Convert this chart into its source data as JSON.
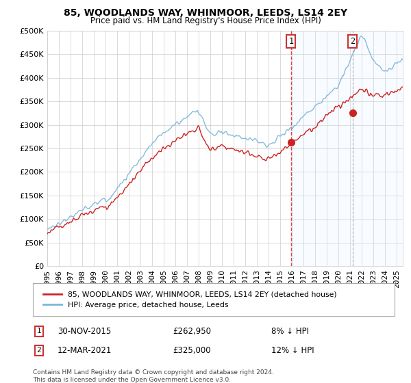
{
  "title": "85, WOODLANDS WAY, WHINMOOR, LEEDS, LS14 2EY",
  "subtitle": "Price paid vs. HM Land Registry's House Price Index (HPI)",
  "legend_line1": "85, WOODLANDS WAY, WHINMOOR, LEEDS, LS14 2EY (detached house)",
  "legend_line2": "HPI: Average price, detached house, Leeds",
  "annotation1_label": "1",
  "annotation1_date": "30-NOV-2015",
  "annotation1_price": "£262,950",
  "annotation1_pct": "8% ↓ HPI",
  "annotation2_label": "2",
  "annotation2_date": "12-MAR-2021",
  "annotation2_price": "£325,000",
  "annotation2_pct": "12% ↓ HPI",
  "footnote": "Contains HM Land Registry data © Crown copyright and database right 2024.\nThis data is licensed under the Open Government Licence v3.0.",
  "hpi_color": "#7ab4d8",
  "price_color": "#cc2222",
  "vline1_color": "#dd4444",
  "vline2_color": "#aaaaaa",
  "highlight_color": "#ddeeff",
  "ylim_min": 0,
  "ylim_max": 500000,
  "ytick_step": 50000,
  "sale1_year": 2015.92,
  "sale1_price": 262950,
  "sale2_year": 2021.19,
  "sale2_price": 325000,
  "xmin": 1995,
  "xmax": 2025.5
}
